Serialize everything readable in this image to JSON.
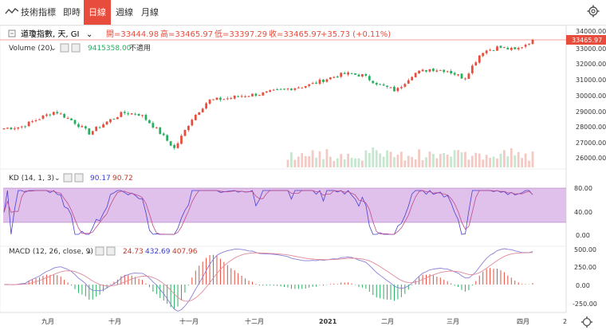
{
  "toolbar": {
    "indicators_label": "技術指標",
    "tabs": [
      "即時",
      "日線",
      "週線",
      "月線"
    ],
    "active_tab": "日線"
  },
  "header": {
    "symbol": "道瓊指數, 天, GI",
    "open": "開=33444.98",
    "high": "高=33465.97",
    "low": "低=33397.29",
    "close": "收=33465.97",
    "change": "+35.73 (+0.11%)",
    "last_price_tag": "33465.97"
  },
  "volume": {
    "label": "Volume (20)",
    "value": "9415358.00",
    "value2": "不適用"
  },
  "kd": {
    "label": "KD (14, 1, 3)",
    "k": "90.17",
    "d": "90.72"
  },
  "macd": {
    "label": "MACD (12, 26, close, 9)",
    "v1": "24.73",
    "v2": "432.69",
    "v3": "407.96"
  },
  "colors": {
    "up": "#e74c3c",
    "down": "#27ae60",
    "kd_band": "#d9b3e6",
    "k_line": "#4b3fd1",
    "d_line": "#c04c8a",
    "macd_line": "#8a7fd6",
    "signal_line": "#e08a9a"
  },
  "axes": {
    "price_ticks": [
      "34000.00",
      "33000.00",
      "32000.00",
      "31000.00",
      "30000.00",
      "29000.00",
      "28000.00",
      "27000.00",
      "26000.00"
    ],
    "kd_ticks": [
      "80.00",
      "40.00",
      "0.00"
    ],
    "macd_ticks": [
      "500.00",
      "250.00",
      "0.00",
      "-250.00"
    ],
    "x_ticks": [
      "九月",
      "十月",
      "十一月",
      "十二月",
      "2021",
      "二月",
      "三月",
      "四月",
      "2"
    ]
  },
  "chart_data": {
    "type": "candlestick",
    "title": "道瓊指數, 天, GI",
    "x": [
      "九月",
      "十月",
      "十一月",
      "十二月",
      "2021",
      "二月",
      "三月",
      "四月"
    ],
    "close_series": [
      27800,
      27900,
      28400,
      28900,
      28300,
      27500,
      28200,
      28800,
      28700,
      27700,
      26500,
      28400,
      29600,
      29700,
      29900,
      30000,
      30200,
      30400,
      30600,
      31000,
      31300,
      31200,
      30600,
      30200,
      31300,
      31600,
      31500,
      31000,
      32700,
      33000,
      32800,
      33466
    ],
    "y_range": [
      25500,
      34400
    ]
  }
}
